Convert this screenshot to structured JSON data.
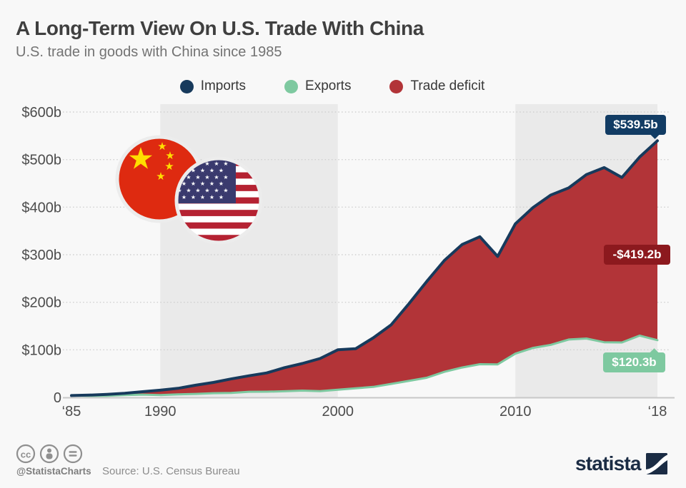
{
  "header": {
    "title": "A Long-Term View On U.S. Trade With China",
    "subtitle": "U.S. trade in goods with China since 1985"
  },
  "legend": [
    {
      "label": "Imports",
      "color": "#173a5c"
    },
    {
      "label": "Exports",
      "color": "#7ec9a0"
    },
    {
      "label": "Trade deficit",
      "color": "#b23438"
    }
  ],
  "chart_data": {
    "type": "area",
    "title": "A Long-Term View On U.S. Trade With China",
    "subtitle": "U.S. trade in goods with China since 1985",
    "unit": "billion USD",
    "x": [
      1985,
      1986,
      1987,
      1988,
      1989,
      1990,
      1991,
      1992,
      1993,
      1994,
      1995,
      1996,
      1997,
      1998,
      1999,
      2000,
      2001,
      2002,
      2003,
      2004,
      2005,
      2006,
      2007,
      2008,
      2009,
      2010,
      2011,
      2012,
      2013,
      2014,
      2015,
      2016,
      2017,
      2018
    ],
    "series": [
      {
        "name": "Imports",
        "color": "#173a5c",
        "style": "line",
        "values": [
          3.9,
          4.8,
          6.3,
          8.5,
          12.0,
          15.2,
          19.0,
          25.7,
          31.5,
          38.8,
          45.5,
          51.5,
          62.6,
          71.2,
          81.8,
          100.0,
          102.3,
          125.2,
          152.4,
          196.7,
          243.5,
          287.8,
          321.4,
          337.8,
          296.4,
          365.0,
          399.4,
          425.6,
          440.4,
          468.5,
          483.2,
          462.5,
          505.5,
          539.5
        ]
      },
      {
        "name": "Exports",
        "color": "#7ec9a0",
        "style": "line",
        "values": [
          3.9,
          3.1,
          3.5,
          5.0,
          5.8,
          4.8,
          6.3,
          7.4,
          8.8,
          9.3,
          11.8,
          12.0,
          12.9,
          14.2,
          13.1,
          16.2,
          19.2,
          22.1,
          28.4,
          34.7,
          41.2,
          53.7,
          62.9,
          69.7,
          69.5,
          91.9,
          104.1,
          110.5,
          121.7,
          123.7,
          115.9,
          115.5,
          129.9,
          120.3
        ]
      },
      {
        "name": "Trade deficit",
        "color": "#b23438",
        "style": "area-between-imports-and-exports",
        "values": [
          0.0,
          1.7,
          2.8,
          3.5,
          6.2,
          10.4,
          12.7,
          18.3,
          22.7,
          29.5,
          33.7,
          39.5,
          49.7,
          57.0,
          68.7,
          83.8,
          83.1,
          103.1,
          124.0,
          162.0,
          202.3,
          234.1,
          258.5,
          268.1,
          226.9,
          273.1,
          295.3,
          315.1,
          318.7,
          344.8,
          367.3,
          347.0,
          375.6,
          419.2
        ]
      }
    ],
    "ylim": [
      0,
      600
    ],
    "yticks": [
      {
        "value": 600,
        "label": "$600b"
      },
      {
        "value": 500,
        "label": "$500b"
      },
      {
        "value": 400,
        "label": "$400b"
      },
      {
        "value": 300,
        "label": "$300b"
      },
      {
        "value": 200,
        "label": "$200b"
      },
      {
        "value": 100,
        "label": "$100b"
      },
      {
        "value": 0,
        "label": "0"
      }
    ],
    "xticks": [
      {
        "year": 1985,
        "label": "‘85"
      },
      {
        "year": 1990,
        "label": "1990"
      },
      {
        "year": 2000,
        "label": "2000"
      },
      {
        "year": 2010,
        "label": "2010"
      },
      {
        "year": 2018,
        "label": "‘18"
      }
    ],
    "bands": [
      [
        1990,
        2000
      ],
      [
        2010,
        2018
      ]
    ],
    "grid": "horizontal-dotted",
    "legend_position": "top-center",
    "annotations": [
      {
        "text": "$539.5b",
        "series": "Imports",
        "year": 2018,
        "color": "#123c64"
      },
      {
        "text": "-$419.2b",
        "series": "Trade deficit",
        "year": 2018,
        "color": "#8c191e"
      },
      {
        "text": "$120.3b",
        "series": "Exports",
        "year": 2018,
        "color": "#7ec9a0"
      }
    ]
  },
  "decorations": {
    "flags": [
      "china-flag-icon",
      "us-flag-icon"
    ]
  },
  "footer": {
    "icons": [
      "cc-icon",
      "attribution-icon",
      "no-derivatives-icon"
    ],
    "handle": "@StatistaCharts",
    "source": "Source: U.S. Census Bureau",
    "brand": "statista"
  },
  "colors": {
    "background": "#f8f8f8",
    "decade_band": "#eaeaea",
    "gridline": "#cfcfcf",
    "axis": "#c8c8c8",
    "imports": "#173a5c",
    "exports": "#7ec9a0",
    "deficit_area": "#b23438",
    "deficit_badge": "#8c191e",
    "imports_badge": "#123c64"
  }
}
